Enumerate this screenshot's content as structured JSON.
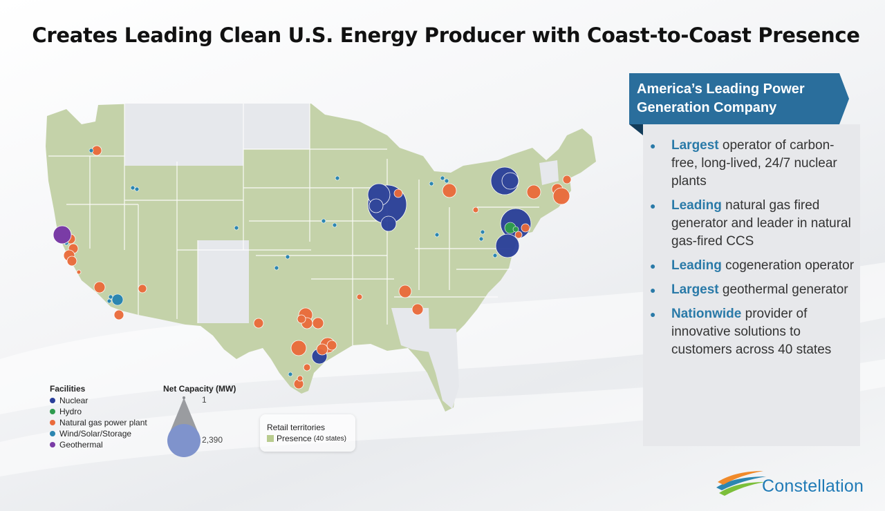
{
  "title": "Creates Leading Clean U.S. Energy Producer with Coast-to-Coast Presence",
  "colors": {
    "nuclear": "#2a3f9a",
    "hydro": "#2e9a4e",
    "gas": "#ea6a3a",
    "wind_solar_storage": "#2c86b0",
    "geothermal": "#7a3ca6",
    "retail_presence": "#b9cc8f",
    "accent": "#2a6e9c"
  },
  "legend": {
    "facilities_title": "Facilities",
    "facilities": [
      {
        "label": "Nuclear",
        "color": "#2a3f9a"
      },
      {
        "label": "Hydro",
        "color": "#2e9a4e"
      },
      {
        "label": "Natural gas power plant",
        "color": "#ea6a3a"
      },
      {
        "label": "Wind/Solar/Storage",
        "color": "#2c86b0"
      },
      {
        "label": "Geothermal",
        "color": "#7a3ca6"
      }
    ],
    "capacity_title": "Net Capacity (MW)",
    "capacity_min": "1",
    "capacity_max": "2,390",
    "retail_title": "Retail territories",
    "retail_item": "Presence",
    "retail_note": "(40 states)"
  },
  "panel": {
    "banner": "America’s Leading Power Generation Company",
    "bullets": [
      {
        "keyword": "Largest",
        "text": " operator of carbon-free, long-lived, 24/7 nuclear plants"
      },
      {
        "keyword": "Leading",
        "text": " natural gas fired generator and leader in natural gas-fired CCS"
      },
      {
        "keyword": "Leading",
        "text": " cogeneration operator"
      },
      {
        "keyword": "Largest",
        "text": " geothermal generator"
      },
      {
        "keyword": "Nationwide",
        "text": " provider of innovative solutions to customers across 40 states"
      }
    ]
  },
  "logo": {
    "name": "Constellation",
    "icon": "constellation-swoosh-icon"
  }
}
